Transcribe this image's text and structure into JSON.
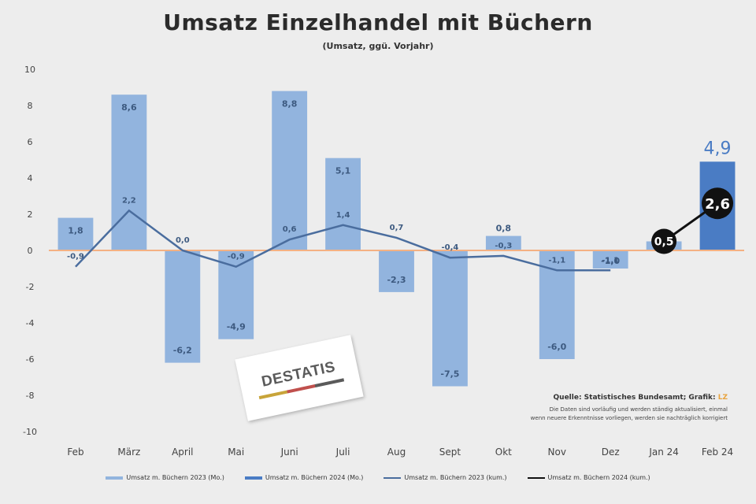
{
  "chart_data": {
    "type": "bar",
    "title": "Umsatz Einzelhandel mit Büchern",
    "subtitle": "(Umsatz, ggü. Vorjahr)",
    "categories": [
      "Feb",
      "März",
      "April",
      "Mai",
      "Juni",
      "Juli",
      "Aug",
      "Sept",
      "Okt",
      "Nov",
      "Dez",
      "Jan 24",
      "Feb 24"
    ],
    "ylim": [
      -10,
      10
    ],
    "yticks": [
      -10,
      -8,
      -6,
      -4,
      -2,
      0,
      2,
      4,
      6,
      8,
      10
    ],
    "grid": false,
    "legend_position": "bottom",
    "series": [
      {
        "name": "Umsatz m. Büchern 2023 (Mo.)",
        "kind": "bar",
        "color": "#92b4de",
        "values": [
          1.8,
          8.6,
          -6.2,
          -4.9,
          8.8,
          5.1,
          -2.3,
          -7.5,
          0.8,
          -6.0,
          -1.0,
          0.5,
          null
        ],
        "labels": [
          "1,8",
          "8,6",
          "-6,2",
          "-4,9",
          "8,8",
          "5,1",
          "-2,3",
          "-7,5",
          "0,8",
          "-6,0",
          "-1,0",
          "0,5",
          ""
        ]
      },
      {
        "name": "Umsatz m. Büchern 2024 (Mo.)",
        "kind": "bar",
        "color": "#4a7cc4",
        "values": [
          null,
          null,
          null,
          null,
          null,
          null,
          null,
          null,
          null,
          null,
          null,
          null,
          4.9
        ],
        "labels": [
          "",
          "",
          "",
          "",
          "",
          "",
          "",
          "",
          "",
          "",
          "",
          "",
          "4,9"
        ]
      },
      {
        "name": "Umsatz m. Büchern 2023 (kum.)",
        "kind": "line",
        "color": "#4a6d9e",
        "values": [
          -0.9,
          2.2,
          0.0,
          -0.9,
          0.6,
          1.4,
          0.7,
          -0.4,
          -0.3,
          -1.1,
          -1.1,
          null,
          null
        ],
        "labels": [
          "-0,9",
          "2,2",
          "0,0",
          "-0,9",
          "0,6",
          "1,4",
          "0,7",
          "-0,4",
          "-0,3",
          "-1,1",
          "-1,1",
          "",
          ""
        ]
      },
      {
        "name": "Umsatz m. Büchern 2024 (kum.)",
        "kind": "line",
        "color": "#111111",
        "values": [
          null,
          null,
          null,
          null,
          null,
          null,
          null,
          null,
          null,
          null,
          null,
          0.5,
          2.6
        ],
        "labels": [
          "",
          "",
          "",
          "",
          "",
          "",
          "",
          "",
          "",
          "",
          "",
          "0,5",
          "2,6"
        ]
      }
    ],
    "zero_line_color": "#f4b183"
  },
  "logo": {
    "text": "DESTATIS"
  },
  "source": {
    "line1": "Quelle: Statistisches Bundesamt; Grafik:",
    "line1_accent": "LZ",
    "note_line1": "Die Daten sind vorläufig und werden ständig aktualisiert, einmal",
    "note_line2": "wenn neuere Erkenntnisse vorliegen, werden sie nachträglich korrigiert"
  }
}
